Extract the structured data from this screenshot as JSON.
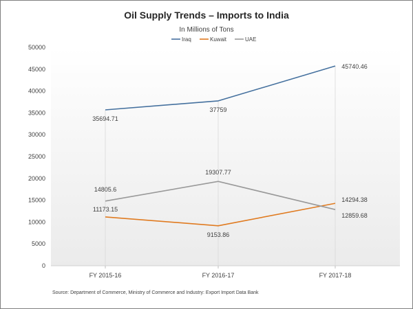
{
  "chart_data": {
    "type": "line",
    "title": "Oil Supply Trends – Imports to India",
    "subtitle": "In Millions of Tons",
    "categories": [
      "FY 2015-16",
      "FY 2016-17",
      "FY 2017-18"
    ],
    "series": [
      {
        "name": "Iraq",
        "color": "#44709e",
        "values": [
          35694.71,
          37759,
          45740.46
        ],
        "labels": [
          "35694.71",
          "37759",
          "45740.46"
        ]
      },
      {
        "name": "Kuwait",
        "color": "#e07a1f",
        "values": [
          11173.15,
          9153.86,
          14294.38
        ],
        "labels": [
          "11173.15",
          "9153.86",
          "14294.38"
        ]
      },
      {
        "name": "UAE",
        "color": "#999999",
        "values": [
          14805.6,
          19307.77,
          12859.68
        ],
        "labels": [
          "14805.6",
          "19307.77",
          "12859.68"
        ]
      }
    ],
    "ylim": [
      0,
      50000
    ],
    "yticks": [
      0,
      5000,
      10000,
      15000,
      20000,
      25000,
      30000,
      35000,
      40000,
      45000,
      50000
    ],
    "ytick_labels": [
      "0",
      "5000",
      "10000",
      "15000",
      "20000",
      "25000",
      "30000",
      "35000",
      "40000",
      "45000",
      "50000"
    ],
    "grid": false,
    "legend_position": "top",
    "source": "Source: Department of Commerce, Ministry of Commerce and Industry: Export Import Data Bank"
  }
}
